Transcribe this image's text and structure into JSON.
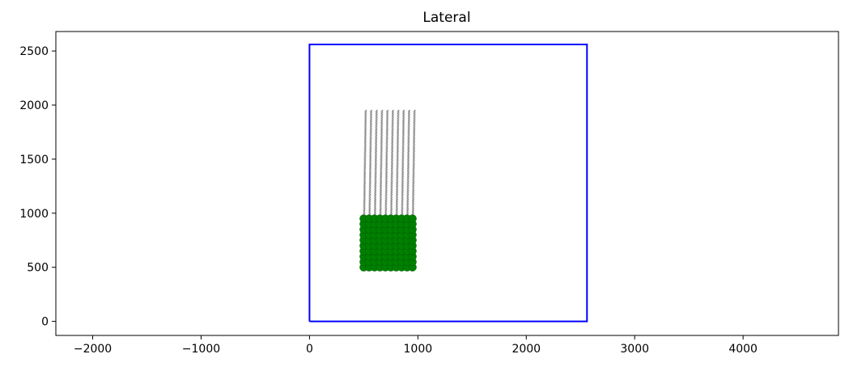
{
  "chart_data": {
    "type": "scatter",
    "title": "Lateral",
    "xlabel": "",
    "ylabel": "",
    "xlim": [
      -2340,
      4880
    ],
    "ylim": [
      -130,
      2680
    ],
    "grid": false,
    "legend": "none",
    "x_ticks": [
      -2000,
      -1000,
      0,
      1000,
      2000,
      3000,
      4000
    ],
    "y_ticks": [
      0,
      500,
      1000,
      1500,
      2000,
      2500
    ],
    "x_tick_labels": [
      "−2000",
      "−1000",
      "0",
      "1000",
      "2000",
      "3000",
      "4000"
    ],
    "y_tick_labels": [
      "0",
      "500",
      "1000",
      "1500",
      "2000",
      "2500"
    ],
    "boundary": {
      "x": [
        0,
        2560,
        2560,
        0,
        0
      ],
      "y": [
        0,
        0,
        2560,
        2560,
        0
      ],
      "color": "#0000ff"
    },
    "soma_grid": {
      "x": [
        500,
        550,
        600,
        650,
        700,
        750,
        800,
        850,
        900,
        950
      ],
      "y": [
        500,
        550,
        600,
        650,
        700,
        750,
        800,
        850,
        900,
        950
      ],
      "color": "#008000"
    },
    "dendrites": {
      "x_start": [
        500,
        550,
        600,
        650,
        700,
        750,
        800,
        850,
        900,
        950
      ],
      "y_start": 950,
      "y_end": 1950,
      "color": "#808080"
    }
  }
}
